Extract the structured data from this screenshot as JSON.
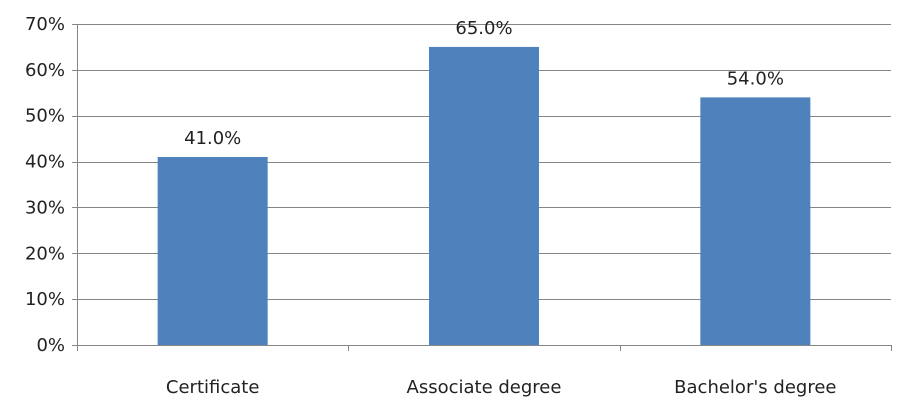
{
  "chart_data": {
    "type": "bar",
    "categories": [
      "Certificate",
      "Associate degree",
      "Bachelor's degree"
    ],
    "values": [
      41.0,
      65.0,
      54.0
    ],
    "value_labels": [
      "41.0%",
      "65.0%",
      "54.0%"
    ],
    "ylim": [
      0,
      70
    ],
    "yticks": [
      0,
      10,
      20,
      30,
      40,
      50,
      60,
      70
    ],
    "ytick_labels": [
      "0%",
      "10%",
      "20%",
      "30%",
      "40%",
      "50%",
      "60%",
      "70%"
    ],
    "grid": true,
    "legend": "none",
    "colors": {
      "bar": "#4F81BD",
      "grid": "#868686",
      "axis": "#868686"
    }
  }
}
